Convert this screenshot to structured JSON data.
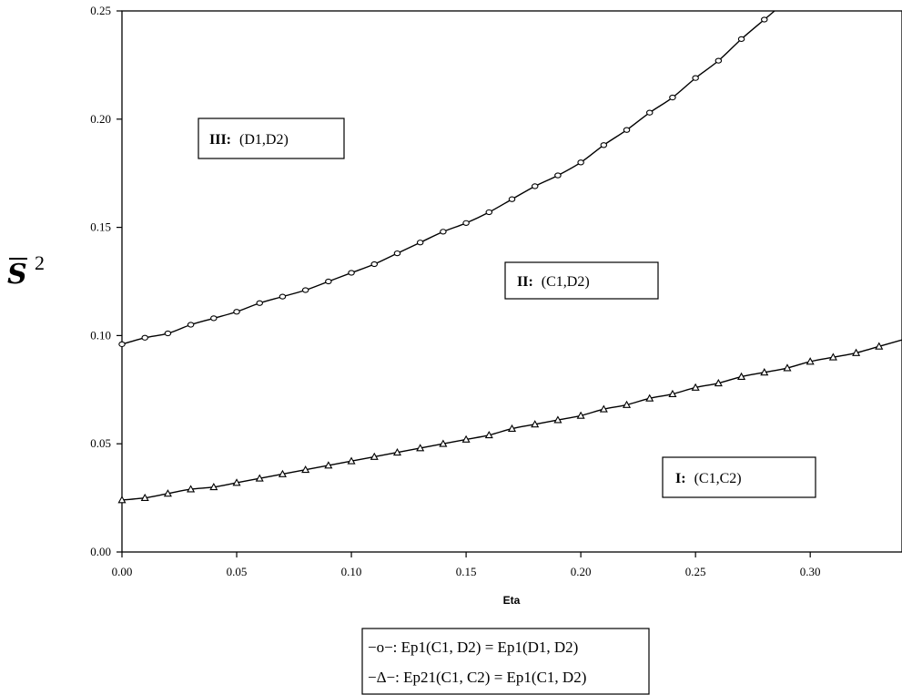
{
  "chart_data": {
    "type": "line",
    "xlabel": "Eta",
    "ylabel": "S",
    "ylabel_exponent": "2",
    "xlim": [
      0.0,
      0.34
    ],
    "ylim": [
      0.0,
      0.25
    ],
    "x_ticks": [
      "0.00",
      "0.05",
      "0.10",
      "0.15",
      "0.20",
      "0.25",
      "0.30"
    ],
    "y_ticks": [
      "0.00",
      "0.05",
      "0.10",
      "0.15",
      "0.20",
      "0.25"
    ],
    "grid": false,
    "series": [
      {
        "name": "−o−: Ep1(C1, D2) = Ep1(D1, D2)",
        "marker": "circle",
        "x": [
          0.0,
          0.01,
          0.02,
          0.03,
          0.04,
          0.05,
          0.06,
          0.07,
          0.08,
          0.09,
          0.1,
          0.11,
          0.12,
          0.13,
          0.14,
          0.15,
          0.16,
          0.17,
          0.18,
          0.19,
          0.2,
          0.21,
          0.22,
          0.23,
          0.24,
          0.25,
          0.26,
          0.27,
          0.28
        ],
        "values": [
          0.096,
          0.099,
          0.101,
          0.105,
          0.108,
          0.111,
          0.115,
          0.118,
          0.121,
          0.125,
          0.129,
          0.133,
          0.138,
          0.143,
          0.148,
          0.152,
          0.157,
          0.163,
          0.169,
          0.174,
          0.18,
          0.188,
          0.195,
          0.203,
          0.21,
          0.219,
          0.227,
          0.237,
          0.246
        ]
      },
      {
        "name": "−Δ−: Ep21(C1, C2) = Ep1(C1, D2)",
        "marker": "triangle",
        "x": [
          0.0,
          0.01,
          0.02,
          0.03,
          0.04,
          0.05,
          0.06,
          0.07,
          0.08,
          0.09,
          0.1,
          0.11,
          0.12,
          0.13,
          0.14,
          0.15,
          0.16,
          0.17,
          0.18,
          0.19,
          0.2,
          0.21,
          0.22,
          0.23,
          0.24,
          0.25,
          0.26,
          0.27,
          0.28,
          0.29,
          0.3,
          0.31,
          0.32,
          0.33
        ],
        "values": [
          0.024,
          0.025,
          0.027,
          0.029,
          0.03,
          0.032,
          0.034,
          0.036,
          0.038,
          0.04,
          0.042,
          0.044,
          0.046,
          0.048,
          0.05,
          0.052,
          0.054,
          0.057,
          0.059,
          0.061,
          0.063,
          0.066,
          0.068,
          0.071,
          0.073,
          0.076,
          0.078,
          0.081,
          0.083,
          0.085,
          0.088,
          0.09,
          0.092,
          0.095
        ]
      }
    ],
    "annotations": [
      {
        "bold": "III:",
        "text": "(D1,D2)",
        "position": "upper-left"
      },
      {
        "bold": "II:",
        "text": "(C1,D2)",
        "position": "center-right"
      },
      {
        "bold": "I:",
        "text": "(C1,C2)",
        "position": "lower-right"
      }
    ],
    "legend_lines": [
      "−o−: Ep1(C1, D2) = Ep1(D1, D2)",
      "−Δ−: Ep21(C1, C2) = Ep1(C1, D2)"
    ],
    "legend_placement": "bottom-center"
  }
}
